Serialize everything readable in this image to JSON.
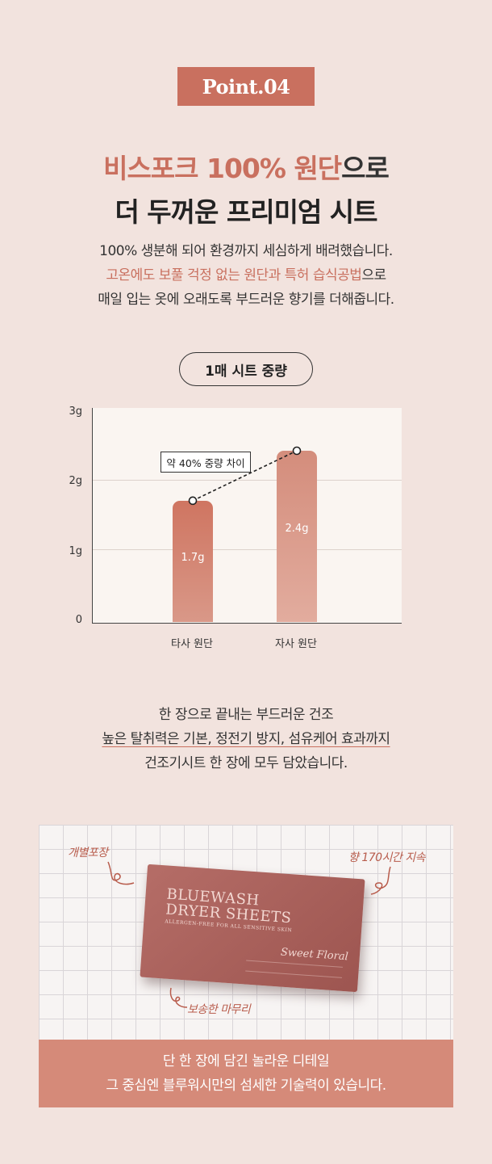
{
  "badge": "Point.04",
  "headline": {
    "line1_accent": "비스포크 100% 원단",
    "line1_rest": "으로",
    "line2": "더 두꺼운 프리미엄 시트"
  },
  "intro": {
    "line1": "100% 생분해 되어 환경까지 세심하게 배려했습니다.",
    "line2_accent": "고온에도 보풀 걱정 없는 원단과 특허 습식공법",
    "line2_rest": "으로",
    "line3": "매일 입는 옷에 오래도록 부드러운 향기를 더해줍니다."
  },
  "pill_label": "1매 시트 중량",
  "chart_data": {
    "type": "bar",
    "title": "1매 시트 중량",
    "categories": [
      "타사 원단",
      "자사 원단"
    ],
    "values": [
      1.7,
      2.4
    ],
    "data_labels": [
      "1.7g",
      "2.4g"
    ],
    "y_ticks": [
      "0",
      "1g",
      "2g",
      "3g"
    ],
    "ylim": [
      0,
      3
    ],
    "grid": true,
    "colors": [
      "#cf7561",
      "#d48d7c"
    ],
    "annotation": "약 40% 중량 차이"
  },
  "feature": {
    "line1": "한 장으로 끝내는 부드러운 건조",
    "line2": "높은 탈취력은 기본, 정전기 방지, 섬유케어 효과까지",
    "line3": "건조기시트 한 장에 모두 담았습니다."
  },
  "photo": {
    "brand_line1": "BLUEWASH",
    "brand_line2": "DRYER SHEETS",
    "brand_sub": "ALLERGEN-FREE FOR ALL SENSITIVE SKIN",
    "scent": "Sweet Floral",
    "note_left": "개별포장",
    "note_right": "향 170시간 지속",
    "note_bottom": "보송한 마무리"
  },
  "banner": {
    "line1": "단 한 장에 담긴 놀라운 디테일",
    "line2": "그 중심엔 블루워시만의 섬세한 기술력이 있습니다."
  },
  "colors": {
    "accent": "#c9705f",
    "background": "#f2e3de",
    "banner": "#d58a79"
  }
}
